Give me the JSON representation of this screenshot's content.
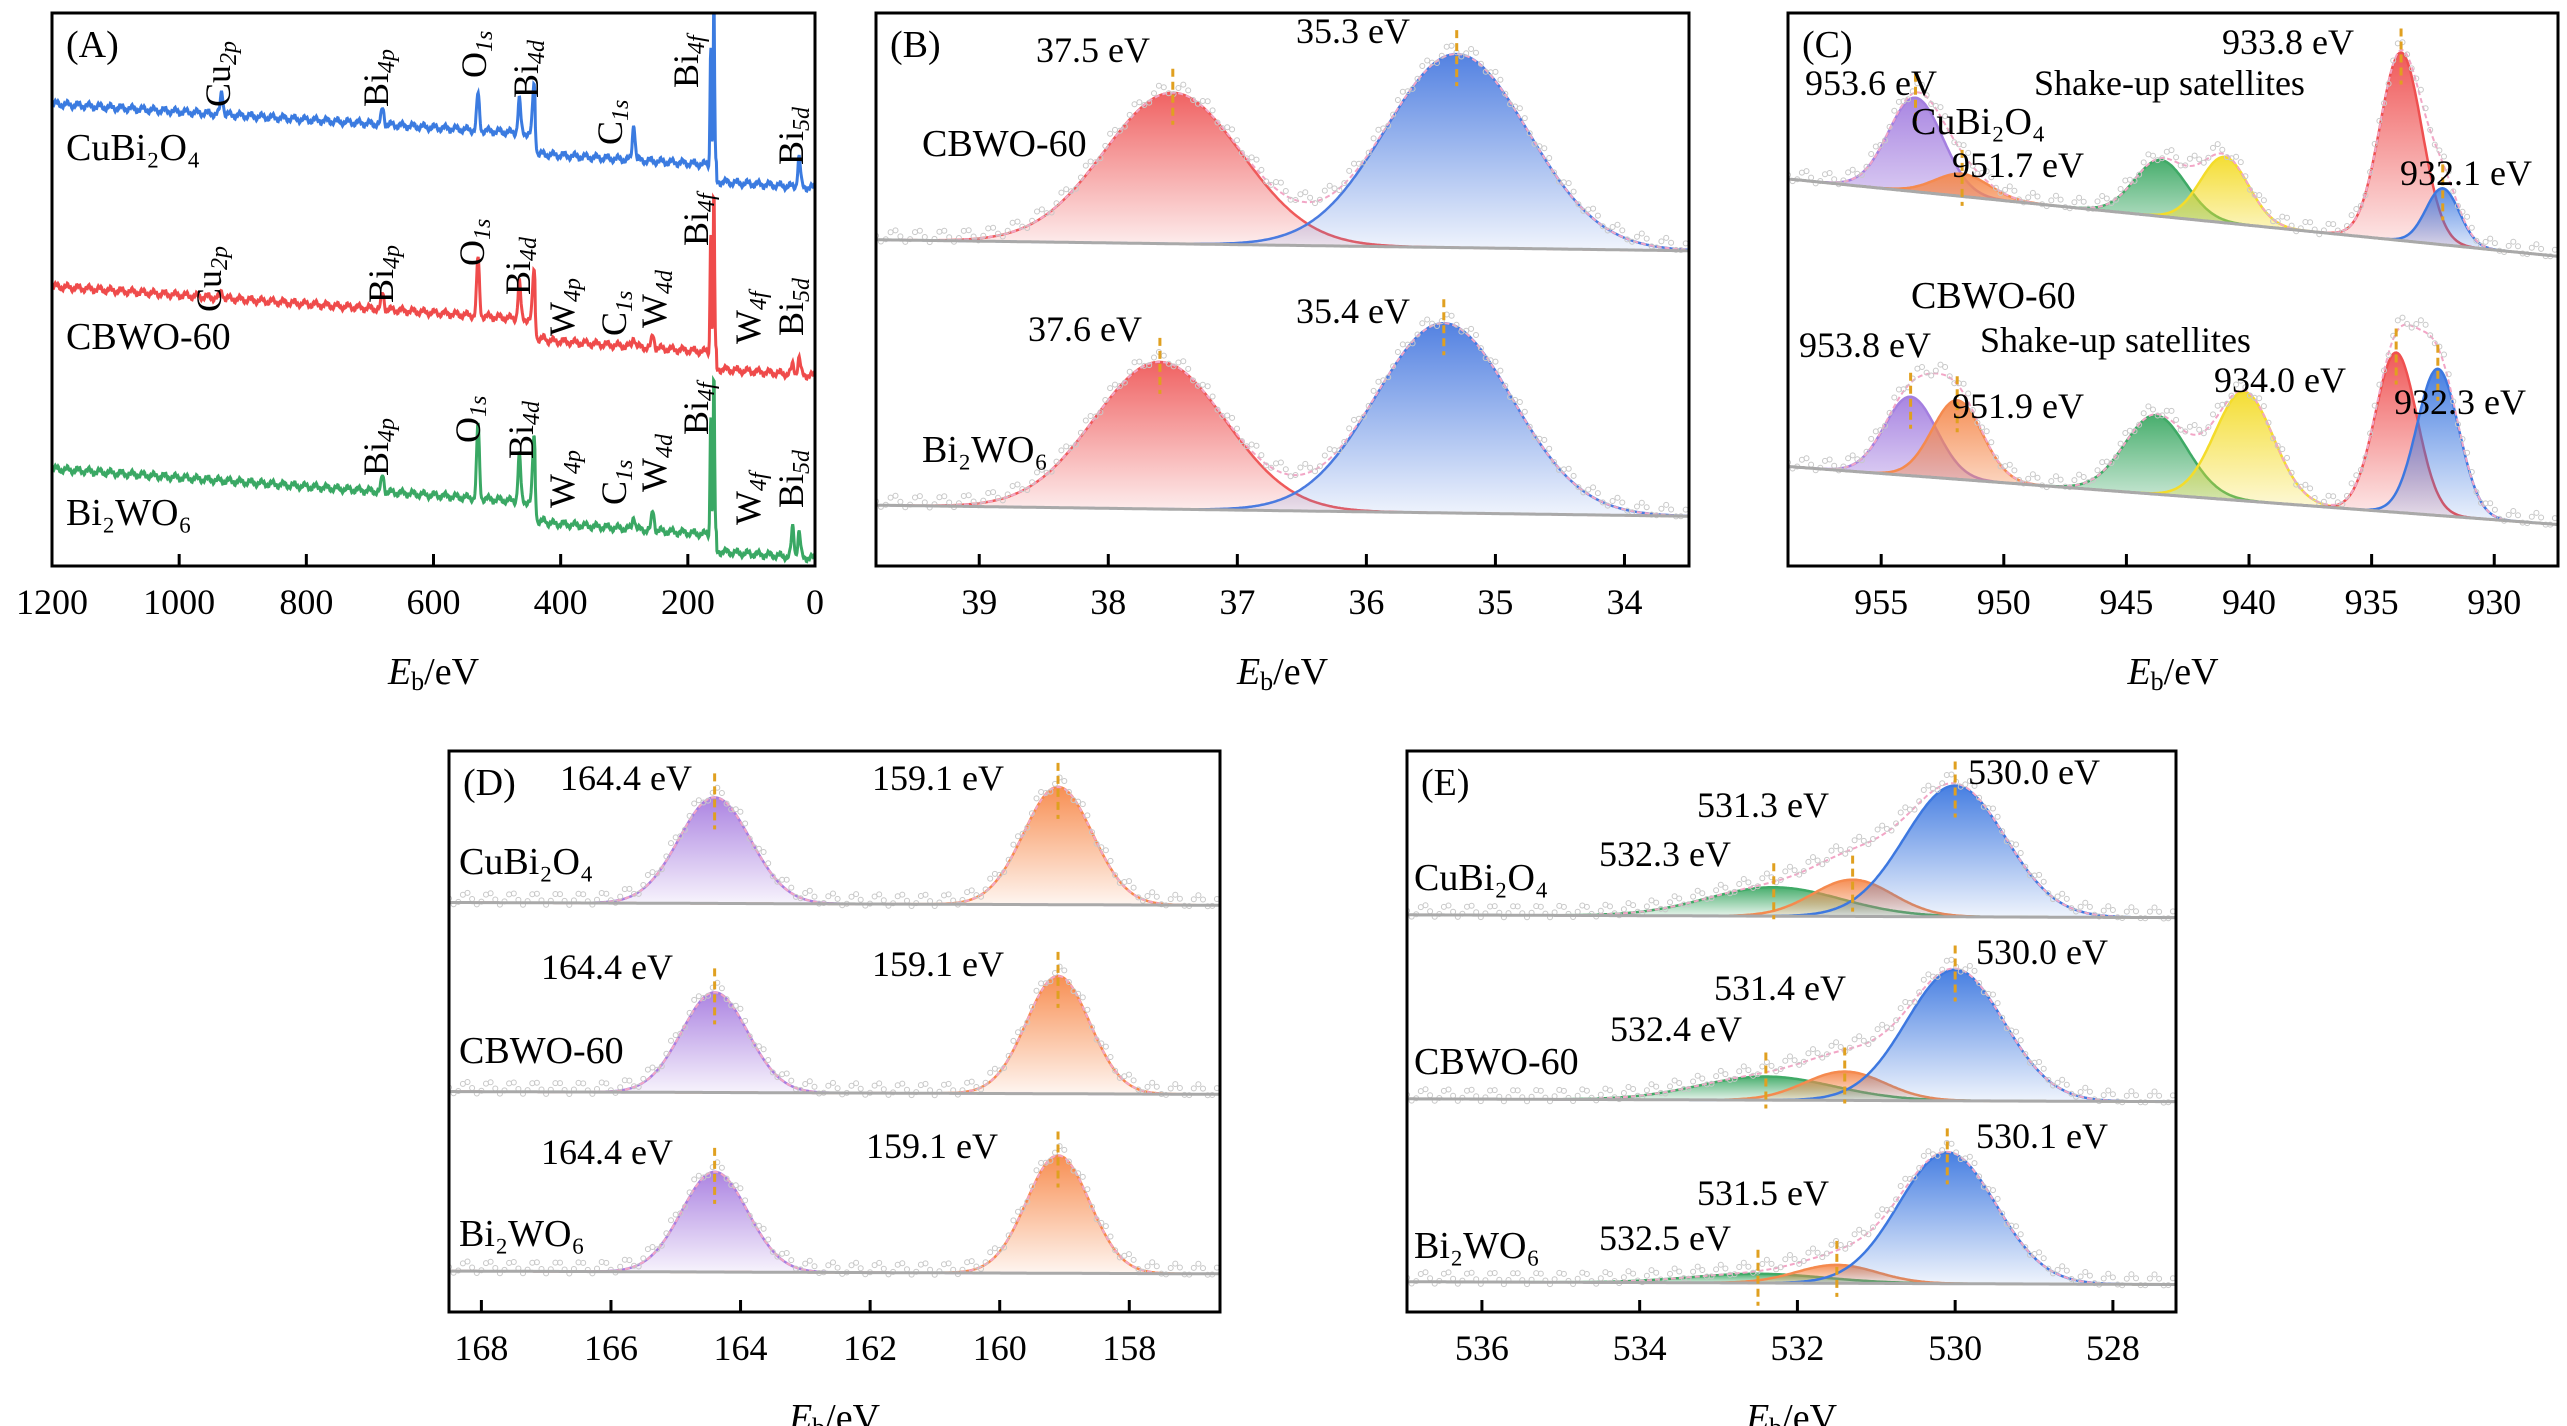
{
  "chart_data": [
    {
      "type": "line",
      "panel_label": "(A)",
      "xlabel": "Eb/eV",
      "xlabel_italic": "E",
      "xlabel_sub": "b",
      "xlabel_unit": "/eV",
      "xlim": [
        1200,
        0
      ],
      "ticks": [
        1200,
        1000,
        800,
        600,
        400,
        200,
        0
      ],
      "spectra": [
        {
          "name": "CuBi₂O₄",
          "color": "#3b7be0",
          "peaks": [
            {
              "E": 933,
              "h": 0.14,
              "label": "Cu",
              "sub": "2p"
            },
            {
              "E": 680,
              "h": 0.1,
              "label": "Bi",
              "sub": "4p"
            },
            {
              "E": 530,
              "h": 0.22,
              "label": "O",
              "sub": "1s"
            },
            {
              "E": 442,
              "h": 0.3,
              "label": "Bi",
              "sub": "4d"
            },
            {
              "E": 465,
              "h": 0.2,
              "label": "",
              "sub": ""
            },
            {
              "E": 285,
              "h": 0.22,
              "label": "C",
              "sub": "1s"
            },
            {
              "E": 159,
              "h": 1.0,
              "label": "Bi",
              "sub": "4f"
            },
            {
              "E": 164,
              "h": 0.75,
              "label": "",
              "sub": ""
            },
            {
              "E": 25,
              "h": 0.18,
              "label": "Bi",
              "sub": "5d"
            }
          ]
        },
        {
          "name": "CBWO-60",
          "color": "#ef4b4b",
          "peaks": [
            {
              "E": 933,
              "h": 0.04,
              "label": "Cu",
              "sub": "2p"
            },
            {
              "E": 680,
              "h": 0.1,
              "label": "Bi",
              "sub": "4p"
            },
            {
              "E": 530,
              "h": 0.35,
              "label": "O",
              "sub": "1s"
            },
            {
              "E": 465,
              "h": 0.22,
              "label": "Bi",
              "sub": "4d"
            },
            {
              "E": 442,
              "h": 0.3,
              "label": "",
              "sub": ""
            },
            {
              "E": 425,
              "h": 0.02,
              "label": "W",
              "sub": "4p"
            },
            {
              "E": 285,
              "h": 0.06,
              "label": "C",
              "sub": "1s"
            },
            {
              "E": 255,
              "h": 0.08,
              "label": "W",
              "sub": "4d"
            },
            {
              "E": 159,
              "h": 1.0,
              "label": "Bi",
              "sub": "4f"
            },
            {
              "E": 164,
              "h": 0.75,
              "label": "",
              "sub": ""
            },
            {
              "E": 35,
              "h": 0.06,
              "label": "W",
              "sub": "4f"
            },
            {
              "E": 25,
              "h": 0.1,
              "label": "Bi",
              "sub": "5d"
            }
          ]
        },
        {
          "name": "Bi₂WO₆",
          "color": "#3aa864",
          "peaks": [
            {
              "E": 680,
              "h": 0.1,
              "label": "Bi",
              "sub": "4p"
            },
            {
              "E": 530,
              "h": 0.45,
              "label": "O",
              "sub": "1s"
            },
            {
              "E": 465,
              "h": 0.28,
              "label": "Bi",
              "sub": "4d"
            },
            {
              "E": 442,
              "h": 0.4,
              "label": "",
              "sub": ""
            },
            {
              "E": 425,
              "h": 0.02,
              "label": "W",
              "sub": "4p"
            },
            {
              "E": 285,
              "h": 0.08,
              "label": "C",
              "sub": "1s"
            },
            {
              "E": 255,
              "h": 0.12,
              "label": "W",
              "sub": "4d"
            },
            {
              "E": 159,
              "h": 1.0,
              "label": "Bi",
              "sub": "4f"
            },
            {
              "E": 164,
              "h": 0.75,
              "label": "",
              "sub": ""
            },
            {
              "E": 35,
              "h": 0.18,
              "label": "W",
              "sub": "4f"
            },
            {
              "E": 25,
              "h": 0.15,
              "label": "Bi",
              "sub": "5d"
            }
          ]
        }
      ]
    },
    {
      "type": "area",
      "panel_label": "(B)",
      "xlabel_italic": "E",
      "xlabel_sub": "b",
      "xlabel_unit": "/eV",
      "xlim": [
        39.8,
        33.5
      ],
      "ticks": [
        39,
        38,
        37,
        36,
        35,
        34
      ],
      "spectra": [
        {
          "name": "CBWO-60",
          "components": [
            {
              "center": 37.5,
              "height": 0.78,
              "fwhm": 1.25,
              "color": "#ef5a5a",
              "label": "37.5 eV"
            },
            {
              "center": 35.3,
              "height": 1.0,
              "fwhm": 1.3,
              "color": "#4a7be0",
              "label": "35.3 eV"
            }
          ]
        },
        {
          "name": "Bi₂WO₆",
          "components": [
            {
              "center": 37.6,
              "height": 0.76,
              "fwhm": 1.2,
              "color": "#ef5a5a",
              "label": "37.6 eV"
            },
            {
              "center": 35.4,
              "height": 0.98,
              "fwhm": 1.25,
              "color": "#4a7be0",
              "label": "35.4 eV"
            }
          ]
        }
      ]
    },
    {
      "type": "area",
      "panel_label": "(C)",
      "xlabel_italic": "E",
      "xlabel_sub": "b",
      "xlabel_unit": "/eV",
      "xlim": [
        958.8,
        927.4
      ],
      "ticks": [
        955,
        950,
        945,
        940,
        935,
        930
      ],
      "annotations": [
        "Shake-up satellites",
        "Shake-up satellites"
      ],
      "spectra": [
        {
          "name": "CuBi₂O₄",
          "components": [
            {
              "center": 953.6,
              "height": 0.5,
              "fwhm": 2.6,
              "color": "#a47fe0",
              "label": "953.6 eV"
            },
            {
              "center": 951.7,
              "height": 0.12,
              "fwhm": 2.6,
              "color": "#f58a4e",
              "label": "951.7 eV"
            },
            {
              "center": 943.6,
              "height": 0.3,
              "fwhm": 2.5,
              "color": "#3faa66",
              "label": ""
            },
            {
              "center": 941.0,
              "height": 0.35,
              "fwhm": 2.3,
              "color": "#f4dc2a",
              "label": ""
            },
            {
              "center": 933.8,
              "height": 1.0,
              "fwhm": 2.0,
              "color": "#ef5050",
              "label": "933.8 eV"
            },
            {
              "center": 932.1,
              "height": 0.3,
              "fwhm": 1.6,
              "color": "#3d78e0",
              "label": "932.1 eV"
            }
          ]
        },
        {
          "name": "CBWO-60",
          "components": [
            {
              "center": 953.8,
              "height": 0.42,
              "fwhm": 2.5,
              "color": "#a47fe0",
              "label": "953.8 eV"
            },
            {
              "center": 951.9,
              "height": 0.42,
              "fwhm": 2.4,
              "color": "#f58a4e",
              "label": "951.9 eV"
            },
            {
              "center": 943.8,
              "height": 0.42,
              "fwhm": 3.0,
              "color": "#3faa66",
              "label": ""
            },
            {
              "center": 940.2,
              "height": 0.58,
              "fwhm": 2.8,
              "color": "#f4dc2a",
              "label": ""
            },
            {
              "center": 934.0,
              "height": 0.85,
              "fwhm": 2.0,
              "color": "#ef5050",
              "label": "934.0 eV"
            },
            {
              "center": 932.3,
              "height": 0.78,
              "fwhm": 2.0,
              "color": "#3d78e0",
              "label": "932.3 eV"
            }
          ]
        }
      ]
    },
    {
      "type": "area",
      "panel_label": "(D)",
      "xlabel_italic": "E",
      "xlabel_sub": "b",
      "xlabel_unit": "/eV",
      "xlim": [
        168.5,
        156.6
      ],
      "ticks": [
        168,
        166,
        164,
        162,
        160,
        158
      ],
      "spectra": [
        {
          "name": "CuBi₂O₄",
          "components": [
            {
              "center": 164.4,
              "height": 0.9,
              "fwhm": 1.3,
              "color": "#a77de0",
              "label": "164.4 eV"
            },
            {
              "center": 159.1,
              "height": 1.0,
              "fwhm": 1.25,
              "color": "#f7894a",
              "label": "159.1 eV"
            }
          ]
        },
        {
          "name": "CBWO-60",
          "components": [
            {
              "center": 164.4,
              "height": 0.85,
              "fwhm": 1.2,
              "color": "#a77de0",
              "label": "164.4 eV"
            },
            {
              "center": 159.1,
              "height": 1.0,
              "fwhm": 1.15,
              "color": "#f7894a",
              "label": "159.1 eV"
            }
          ]
        },
        {
          "name": "Bi₂WO₆",
          "components": [
            {
              "center": 164.4,
              "height": 0.85,
              "fwhm": 1.2,
              "color": "#a77de0",
              "label": "164.4 eV"
            },
            {
              "center": 159.1,
              "height": 1.0,
              "fwhm": 1.15,
              "color": "#f7894a",
              "label": "159.1 eV"
            }
          ]
        }
      ]
    },
    {
      "type": "area",
      "panel_label": "(E)",
      "xlabel_italic": "E",
      "xlabel_sub": "b",
      "xlabel_unit": "/eV",
      "xlim": [
        536.95,
        527.2
      ],
      "ticks": [
        536,
        534,
        532,
        530,
        528
      ],
      "spectra": [
        {
          "name": "CuBi₂O₄",
          "components": [
            {
              "center": 532.3,
              "height": 0.22,
              "fwhm": 2.0,
              "color": "#3faa66",
              "label": "532.3 eV"
            },
            {
              "center": 531.3,
              "height": 0.28,
              "fwhm": 1.2,
              "color": "#f58a4e",
              "label": "531.3 eV"
            },
            {
              "center": 530.0,
              "height": 1.0,
              "fwhm": 1.5,
              "color": "#3d78e0",
              "label": "530.0 eV"
            }
          ]
        },
        {
          "name": "CBWO-60",
          "components": [
            {
              "center": 532.4,
              "height": 0.18,
              "fwhm": 2.0,
              "color": "#3faa66",
              "label": "532.4 eV"
            },
            {
              "center": 531.4,
              "height": 0.22,
              "fwhm": 1.2,
              "color": "#f58a4e",
              "label": "531.4 eV"
            },
            {
              "center": 530.0,
              "height": 1.0,
              "fwhm": 1.45,
              "color": "#3d78e0",
              "label": "530.0 eV"
            }
          ]
        },
        {
          "name": "Bi₂WO₆",
          "components": [
            {
              "center": 532.5,
              "height": 0.07,
              "fwhm": 2.0,
              "color": "#3faa66",
              "label": "532.5 eV"
            },
            {
              "center": 531.5,
              "height": 0.14,
              "fwhm": 1.2,
              "color": "#f58a4e",
              "label": "531.5 eV"
            },
            {
              "center": 530.1,
              "height": 1.0,
              "fwhm": 1.45,
              "color": "#3d78e0",
              "label": "530.1 eV"
            }
          ]
        }
      ]
    }
  ]
}
